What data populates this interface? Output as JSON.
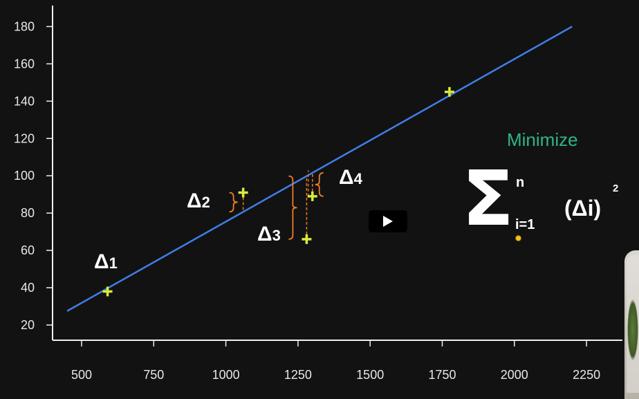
{
  "chart_data": {
    "type": "scatter",
    "x_ticks": [
      "500",
      "750",
      "1000",
      "1250",
      "1500",
      "1750",
      "2000",
      "2250"
    ],
    "y_ticks": [
      "20",
      "40",
      "60",
      "80",
      "100",
      "120",
      "140",
      "160",
      "180"
    ],
    "xlim": [
      400,
      2330
    ],
    "ylim": [
      15,
      190
    ],
    "points": [
      {
        "x": 590,
        "y": 38
      },
      {
        "x": 1060,
        "y": 91
      },
      {
        "x": 1280,
        "y": 66
      },
      {
        "x": 1300,
        "y": 89
      },
      {
        "x": 1775,
        "y": 145
      }
    ],
    "regression_line": {
      "x": [
        450,
        2200
      ],
      "y": [
        27.5,
        180
      ]
    },
    "residual_labels": [
      {
        "main": "Δ",
        "sub": "1"
      },
      {
        "main": "Δ",
        "sub": "2"
      },
      {
        "main": "Δ",
        "sub": "3"
      },
      {
        "main": "Δ",
        "sub": "4"
      }
    ],
    "colors": {
      "line": "#3f7fe8",
      "points": "#d8ec3a",
      "residual": "#f07d25",
      "axis": "#f0f0f0",
      "tick_text": "#e8e8e8"
    }
  },
  "formula": {
    "title": "Minimize",
    "sigma": "Σ",
    "upper": "n",
    "lower": "i=1",
    "term": "(Δi)",
    "exponent": "2"
  },
  "player": {
    "play_icon": "play-icon"
  }
}
